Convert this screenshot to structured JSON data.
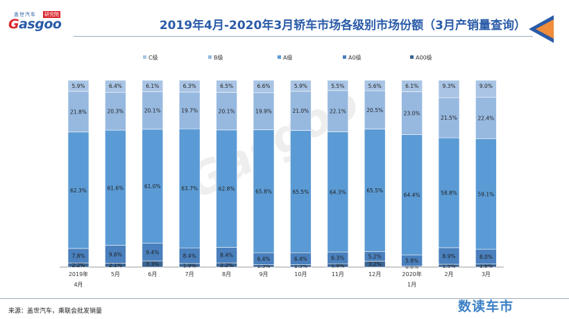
{
  "header": {
    "logo_cn": "盖世汽车",
    "logo_cn2": "研究院",
    "logo_en_prefix": "G",
    "logo_en_rest": "asgoo",
    "title": "2019年4月-2020年3月轿车市场各级别市场份额（3月产销量查询）"
  },
  "watermark": "Gasgoo",
  "footer": {
    "source": "来源：盖世汽车，乘联会批发销量",
    "brand": "数读车市"
  },
  "colors": {
    "C级": "#a9c4e4",
    "B级": "#97b9e0",
    "A级": "#5b9bd5",
    "A0级": "#4a80bd",
    "A00级": "#3b6593",
    "title": "#2a5ba8",
    "arrow_orange": "#f08c3a",
    "arrow_blue": "#2a5ba8"
  },
  "chart_data": {
    "type": "bar",
    "stacked": true,
    "percent_stacked": true,
    "categories": [
      "2019年\n4月",
      "5月",
      "6月",
      "7月",
      "8月",
      "9月",
      "10月",
      "11月",
      "12月",
      "2020年\n1月",
      "2月",
      "3月"
    ],
    "series": [
      {
        "name": "A00级",
        "values": [
          2.2,
          2.1,
          3.3,
          1.9,
          2.2,
          1.3,
          1.3,
          1.8,
          3.2,
          0.6,
          1.5,
          1.6
        ],
        "labels": [
          "2.2%",
          "2.1%",
          "3.3%",
          "1.9%",
          "2.2%",
          "1.3%",
          "1.3%",
          "1.8%",
          "3.2%",
          "0.6%",
          "1.5%",
          "1.6%"
        ]
      },
      {
        "name": "A0级",
        "values": [
          7.8,
          9.6,
          9.4,
          8.4,
          8.4,
          6.4,
          6.4,
          6.3,
          5.2,
          5.8,
          8.9,
          8.0
        ],
        "labels": [
          "7.8%",
          "9.6%",
          "9.4%",
          "8.4%",
          "8.4%",
          "6.4%",
          "6.4%",
          "6.3%",
          "5.2%",
          "5.8%",
          "8.9%",
          "8.0%"
        ]
      },
      {
        "name": "A级",
        "values": [
          62.3,
          61.6,
          61.0,
          63.7,
          62.8,
          65.8,
          65.5,
          64.3,
          65.5,
          64.4,
          58.8,
          59.1
        ],
        "labels": [
          "62.3%",
          "61.6%",
          "61.0%",
          "63.7%",
          "62.8%",
          "65.8%",
          "65.5%",
          "64.3%",
          "65.5%",
          "64.4%",
          "58.8%",
          "59.1%"
        ]
      },
      {
        "name": "B级",
        "values": [
          21.8,
          20.3,
          20.1,
          19.7,
          20.1,
          19.9,
          21.0,
          22.1,
          20.5,
          23.0,
          21.5,
          22.4
        ],
        "labels": [
          "21.8%",
          "20.3%",
          "20.1%",
          "19.7%",
          "20.1%",
          "19.9%",
          "21.0%",
          "22.1%",
          "20.5%",
          "23.0%",
          "21.5%",
          "22.4%"
        ]
      },
      {
        "name": "C级",
        "values": [
          5.9,
          6.4,
          6.1,
          6.3,
          6.5,
          6.6,
          5.9,
          5.5,
          5.6,
          6.1,
          9.3,
          9.0
        ],
        "labels": [
          "5.9%",
          "6.4%",
          "6.1%",
          "6.3%",
          "6.5%",
          "6.6%",
          "5.9%",
          "5.5%",
          "5.6%",
          "6.1%",
          "9.3%",
          "9.0%"
        ]
      }
    ],
    "legend_order": [
      "C级",
      "B级",
      "A级",
      "A0级",
      "A00级"
    ],
    "legend_position": "top",
    "ylim": [
      0,
      100
    ],
    "grid": false
  }
}
